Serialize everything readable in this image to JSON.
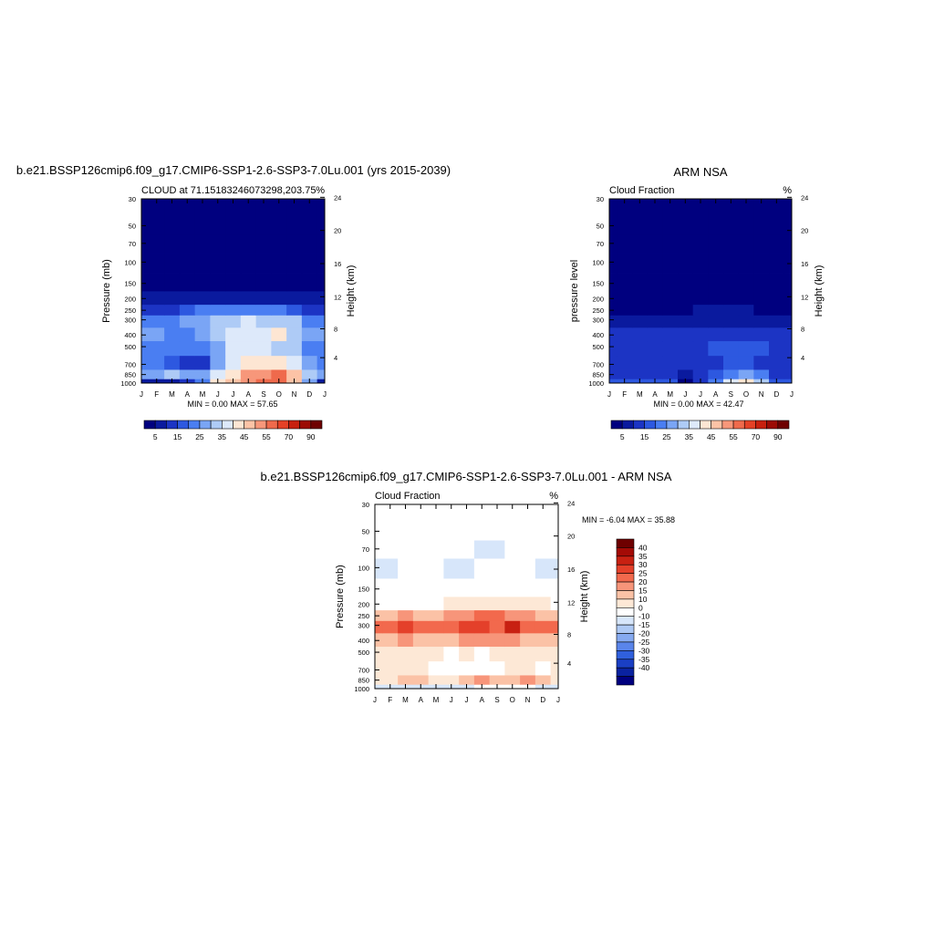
{
  "months": [
    "J",
    "F",
    "M",
    "A",
    "M",
    "J",
    "J",
    "A",
    "S",
    "O",
    "N",
    "D",
    "J"
  ],
  "pressure_ticks": [
    "30",
    "50",
    "70",
    "100",
    "150",
    "200",
    "250",
    "300",
    "400",
    "500",
    "700",
    "850",
    "1000"
  ],
  "pressure_values": [
    30,
    50,
    70,
    100,
    150,
    200,
    250,
    300,
    400,
    500,
    700,
    850,
    1000
  ],
  "height_ticks": [
    "4",
    "8",
    "12",
    "16",
    "20",
    "24"
  ],
  "height_values": [
    4,
    8,
    12,
    16,
    20,
    24
  ],
  "colors": {
    "seq": [
      "#00007f",
      "#0a1a9e",
      "#1c34c4",
      "#2d58e0",
      "#4a7ef2",
      "#7aa5f5",
      "#aecbf6",
      "#dde9fa",
      "#fde6d3",
      "#fcc3a6",
      "#f7977a",
      "#ef6a4c",
      "#e44126",
      "#c7200e",
      "#9c0b04",
      "#6e0000"
    ],
    "div": [
      "#6e0000",
      "#a40b06",
      "#c82112",
      "#e4402a",
      "#f2694d",
      "#f7957a",
      "#fbc2a6",
      "#fde8d6",
      "#ffffff",
      "#d7e6fa",
      "#aec9f4",
      "#86aaf0",
      "#5a85ea",
      "#3060dd",
      "#1a3fc4",
      "#0a22a0",
      "#00007f"
    ]
  },
  "panel1": {
    "main_title": "b.e21.BSSP126cmip6.f09_g17.CMIP6-SSP1-2.6-SSP3-7.0Lu.001 (yrs 2015-2039)",
    "left_title": "CLOUD at 71.15183246073298,203.75",
    "right_title": "%",
    "ylabel": "Pressure (mb)",
    "ylabel_right": "Height (km)",
    "stats": "MIN =   0.00 MAX =  57.65"
  },
  "panel2": {
    "main_title": "ARM NSA",
    "left_title": "Cloud Fraction",
    "right_title": "%",
    "ylabel": "pressure level",
    "ylabel_right": "Height (km)",
    "stats": "MIN =   0.00 MAX =  42.47"
  },
  "panel3": {
    "main_title": "b.e21.BSSP126cmip6.f09_g17.CMIP6-SSP1-2.6-SSP3-7.0Lu.001 - ARM NSA",
    "left_title": "Cloud Fraction",
    "right_title": "%",
    "ylabel": "Pressure (mb)",
    "ylabel_right": "Height (km)",
    "stats": "MIN =  -6.04 MAX =  35.88"
  },
  "colorbar_seq_labels": [
    "5",
    "15",
    "25",
    "35",
    "45",
    "55",
    "70",
    "90"
  ],
  "colorbar_div_labels": [
    "40",
    "35",
    "30",
    "25",
    "20",
    "15",
    "10",
    "0",
    "-10",
    "-15",
    "-20",
    "-25",
    "-30",
    "-35",
    "-40"
  ],
  "chart_data": [
    {
      "type": "heatmap",
      "title": "CLOUD at 71.15183246073298,203.75",
      "xlabel": "",
      "ylabel": "Pressure (mb)",
      "x": [
        "J",
        "F",
        "M",
        "A",
        "M",
        "J",
        "J",
        "A",
        "S",
        "O",
        "N",
        "D",
        "J"
      ],
      "y": [
        1000,
        850,
        700,
        500,
        400,
        300,
        250,
        200,
        150,
        100,
        70,
        50,
        30
      ],
      "ylim": [
        1000,
        30
      ],
      "y_scale": "log",
      "units": "%",
      "min": 0.0,
      "max": 57.65,
      "values": [
        [
          8,
          8,
          8,
          10,
          20,
          40,
          45,
          50,
          55,
          57,
          45,
          25,
          8
        ],
        [
          28,
          28,
          30,
          25,
          26,
          35,
          40,
          50,
          52,
          55,
          45,
          30,
          28
        ],
        [
          22,
          22,
          18,
          12,
          14,
          28,
          38,
          40,
          40,
          40,
          38,
          25,
          22
        ],
        [
          24,
          24,
          22,
          20,
          22,
          28,
          35,
          38,
          36,
          30,
          30,
          24,
          24
        ],
        [
          25,
          25,
          24,
          24,
          26,
          30,
          36,
          38,
          35,
          42,
          32,
          26,
          25
        ],
        [
          20,
          20,
          22,
          25,
          28,
          30,
          34,
          35,
          32,
          30,
          30,
          24,
          20
        ],
        [
          14,
          12,
          14,
          18,
          20,
          22,
          24,
          24,
          22,
          20,
          18,
          14,
          14
        ],
        [
          5,
          5,
          6,
          7,
          8,
          8,
          8,
          8,
          8,
          7,
          6,
          5,
          5
        ],
        [
          1,
          1,
          1,
          1,
          1,
          1,
          1,
          1,
          1,
          1,
          1,
          1,
          1
        ],
        [
          0,
          0,
          0,
          0,
          0,
          0,
          0,
          0,
          0,
          0,
          0,
          0,
          0
        ],
        [
          0,
          0,
          0,
          0,
          0,
          0,
          0,
          0,
          0,
          0,
          0,
          0,
          0
        ],
        [
          0,
          0,
          0,
          0,
          0,
          0,
          0,
          0,
          0,
          0,
          0,
          0,
          0
        ],
        [
          0,
          0,
          0,
          0,
          0,
          0,
          0,
          0,
          0,
          0,
          0,
          0,
          0
        ]
      ]
    },
    {
      "type": "heatmap",
      "title": "Cloud Fraction",
      "xlabel": "",
      "ylabel": "pressure level",
      "x": [
        "J",
        "F",
        "M",
        "A",
        "M",
        "J",
        "J",
        "A",
        "S",
        "O",
        "N",
        "D",
        "J"
      ],
      "y": [
        1000,
        850,
        700,
        500,
        400,
        300,
        250,
        200,
        150,
        100,
        70,
        50,
        30
      ],
      "ylim": [
        1000,
        30
      ],
      "y_scale": "log",
      "units": "%",
      "min": 0.0,
      "max": 42.47,
      "values": [
        [
          15,
          15,
          15,
          15,
          18,
          4,
          10,
          20,
          35,
          42,
          32,
          18,
          15
        ],
        [
          12,
          12,
          12,
          12,
          12,
          8,
          10,
          15,
          22,
          28,
          20,
          14,
          12
        ],
        [
          12,
          14,
          14,
          12,
          14,
          10,
          12,
          14,
          15,
          16,
          14,
          14,
          12
        ],
        [
          14,
          14,
          14,
          12,
          14,
          12,
          14,
          16,
          16,
          15,
          15,
          14,
          14
        ],
        [
          12,
          12,
          12,
          12,
          12,
          12,
          12,
          12,
          12,
          12,
          12,
          12,
          12
        ],
        [
          6,
          6,
          6,
          8,
          8,
          8,
          8,
          8,
          8,
          8,
          8,
          8,
          6
        ],
        [
          3,
          3,
          3,
          4,
          4,
          4,
          5,
          5,
          5,
          5,
          4,
          4,
          3
        ],
        [
          1,
          1,
          1,
          1,
          1,
          1,
          1,
          1,
          1,
          1,
          1,
          1,
          1
        ],
        [
          0,
          0,
          0,
          0,
          0,
          0,
          0,
          0,
          0,
          0,
          0,
          0,
          0
        ],
        [
          0,
          0,
          0,
          0,
          0,
          0,
          0,
          0,
          0,
          0,
          0,
          0,
          0
        ],
        [
          0,
          0,
          0,
          0,
          0,
          0,
          0,
          0,
          0,
          0,
          0,
          0,
          0
        ],
        [
          0,
          0,
          0,
          0,
          0,
          0,
          0,
          0,
          0,
          0,
          0,
          0,
          0
        ],
        [
          0,
          0,
          0,
          0,
          0,
          0,
          0,
          0,
          0,
          0,
          0,
          0,
          0
        ]
      ]
    },
    {
      "type": "heatmap",
      "title": "Cloud Fraction",
      "xlabel": "",
      "ylabel": "Pressure (mb)",
      "x": [
        "J",
        "F",
        "M",
        "A",
        "M",
        "J",
        "J",
        "A",
        "S",
        "O",
        "N",
        "D",
        "J"
      ],
      "y": [
        1000,
        850,
        700,
        500,
        400,
        300,
        250,
        200,
        150,
        100,
        70,
        50,
        30
      ],
      "ylim": [
        1000,
        30
      ],
      "y_scale": "log",
      "units": "%",
      "min": -6.04,
      "max": 35.88,
      "values": [
        [
          -2,
          -2,
          -4,
          -3,
          -4,
          -2,
          -2,
          2,
          2,
          2,
          2,
          -2,
          -2
        ],
        [
          12,
          12,
          16,
          15,
          12,
          10,
          15,
          20,
          18,
          18,
          20,
          18,
          12
        ],
        [
          10,
          10,
          12,
          10,
          8,
          8,
          4,
          6,
          8,
          10,
          10,
          8,
          10
        ],
        [
          12,
          12,
          14,
          12,
          10,
          8,
          10,
          6,
          12,
          14,
          12,
          12,
          12
        ],
        [
          18,
          18,
          20,
          18,
          16,
          18,
          20,
          20,
          22,
          20,
          18,
          16,
          18
        ],
        [
          25,
          25,
          32,
          25,
          25,
          28,
          30,
          30,
          28,
          35,
          28,
          25,
          25
        ],
        [
          15,
          15,
          20,
          18,
          18,
          20,
          22,
          25,
          25,
          22,
          20,
          18,
          15
        ],
        [
          8,
          8,
          8,
          8,
          8,
          10,
          10,
          12,
          12,
          10,
          10,
          10,
          8
        ],
        [
          2,
          2,
          2,
          2,
          2,
          2,
          2,
          2,
          2,
          2,
          2,
          2,
          2
        ],
        [
          -1,
          -1,
          2,
          2,
          2,
          -1,
          -1,
          2,
          2,
          2,
          2,
          -1,
          -1
        ],
        [
          2,
          2,
          2,
          2,
          2,
          2,
          2,
          -1,
          -1,
          2,
          2,
          2,
          2
        ],
        [
          2,
          2,
          2,
          2,
          2,
          2,
          2,
          2,
          2,
          2,
          2,
          2,
          2
        ],
        [
          2,
          2,
          2,
          2,
          2,
          2,
          2,
          2,
          2,
          2,
          2,
          2,
          2
        ]
      ]
    }
  ]
}
